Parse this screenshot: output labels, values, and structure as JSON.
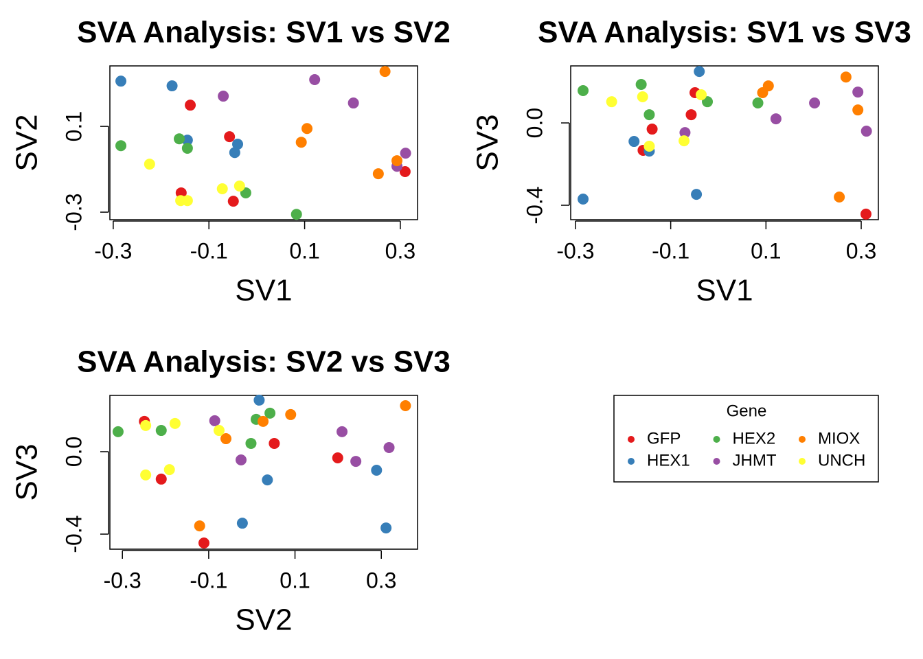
{
  "chart_data": [
    {
      "type": "scatter",
      "title": "SVA Analysis: SV1 vs SV2",
      "x_label": "SV1",
      "y_label": "SV2",
      "xlim": [
        -0.307,
        0.336
      ],
      "ylim": [
        -0.335,
        0.382
      ],
      "xticks": [
        -0.3,
        -0.1,
        0.1,
        0.3
      ],
      "yticks": [
        -0.3,
        0.1
      ],
      "legend_title": "Gene",
      "series": [
        {
          "name": "GFP",
          "color": "#E41A1C",
          "x": [
            -0.139,
            -0.057,
            -0.158,
            -0.049,
            0.31
          ],
          "values": [
            0.199,
            0.052,
            -0.21,
            -0.249,
            -0.111
          ]
        },
        {
          "name": "HEX1",
          "color": "#377EB8",
          "x": [
            -0.284,
            -0.177,
            -0.145,
            -0.04,
            -0.046
          ],
          "values": [
            0.311,
            0.289,
            0.036,
            0.017,
            -0.022
          ]
        },
        {
          "name": "HEX2",
          "color": "#4DAF4A",
          "x": [
            -0.284,
            -0.162,
            -0.145,
            -0.023,
            0.083
          ],
          "values": [
            0.01,
            0.042,
            -0.002,
            -0.21,
            -0.31
          ]
        },
        {
          "name": "JHMT",
          "color": "#984EA3",
          "x": [
            0.121,
            -0.07,
            0.202,
            0.311,
            0.293
          ],
          "values": [
            0.318,
            0.241,
            0.209,
            -0.025,
            -0.086
          ]
        },
        {
          "name": "MIOX",
          "color": "#FF7F00",
          "x": [
            0.268,
            0.105,
            0.093,
            0.293,
            0.254
          ],
          "values": [
            0.356,
            0.09,
            0.026,
            -0.06,
            -0.121
          ]
        },
        {
          "name": "UNCH",
          "color": "#FFFF33",
          "x": [
            -0.224,
            -0.072,
            -0.036,
            -0.159,
            -0.145
          ],
          "values": [
            -0.076,
            -0.191,
            -0.178,
            -0.246,
            -0.246
          ]
        }
      ]
    },
    {
      "type": "scatter",
      "title": "SVA Analysis: SV1 vs SV3",
      "x_label": "SV1",
      "y_label": "SV3",
      "xlim": [
        -0.31,
        0.336
      ],
      "ylim": [
        -0.47,
        0.277
      ],
      "xticks": [
        -0.3,
        -0.1,
        0.1,
        0.3
      ],
      "yticks": [
        -0.4,
        {
          "value": 0,
          "label": "0.0"
        }
      ],
      "series": [
        {
          "name": "GFP",
          "color": "#E41A1C",
          "x": [
            -0.139,
            -0.057,
            -0.158,
            -0.049,
            0.31
          ],
          "values": [
            -0.03,
            0.04,
            -0.133,
            0.147,
            -0.443
          ]
        },
        {
          "name": "HEX1",
          "color": "#377EB8",
          "x": [
            -0.284,
            -0.177,
            -0.145,
            -0.04,
            -0.046
          ],
          "values": [
            -0.37,
            -0.09,
            -0.137,
            0.25,
            -0.347
          ]
        },
        {
          "name": "HEX2",
          "color": "#4DAF4A",
          "x": [
            -0.284,
            -0.162,
            -0.145,
            -0.023,
            0.083
          ],
          "values": [
            0.157,
            0.187,
            0.04,
            0.103,
            0.097
          ]
        },
        {
          "name": "JHMT",
          "color": "#984EA3",
          "x": [
            0.121,
            -0.07,
            0.202,
            0.311,
            0.293
          ],
          "values": [
            0.02,
            -0.047,
            0.097,
            -0.04,
            0.15
          ]
        },
        {
          "name": "MIOX",
          "color": "#FF7F00",
          "x": [
            0.268,
            0.105,
            0.093,
            0.293,
            0.254
          ],
          "values": [
            0.223,
            0.18,
            0.147,
            0.063,
            -0.36
          ]
        },
        {
          "name": "UNCH",
          "color": "#FFFF33",
          "x": [
            -0.224,
            -0.072,
            -0.036,
            -0.159,
            -0.145
          ],
          "values": [
            0.103,
            -0.087,
            0.137,
            0.127,
            -0.113
          ]
        }
      ]
    },
    {
      "type": "scatter",
      "title": "SVA Analysis: SV2 vs SV3",
      "x_label": "SV2",
      "y_label": "SV3",
      "xlim": [
        -0.329,
        0.384
      ],
      "ylim": [
        -0.473,
        0.273
      ],
      "xticks": [
        -0.3,
        -0.1,
        0.1,
        0.3
      ],
      "yticks": [
        -0.4,
        {
          "value": 0,
          "label": "0.0"
        }
      ],
      "series": [
        {
          "name": "GFP",
          "color": "#E41A1C",
          "x": [
            0.199,
            0.052,
            -0.21,
            -0.249,
            -0.111
          ],
          "values": [
            -0.03,
            0.04,
            -0.133,
            0.147,
            -0.443
          ]
        },
        {
          "name": "HEX1",
          "color": "#377EB8",
          "x": [
            0.311,
            0.289,
            0.036,
            0.017,
            -0.022
          ],
          "values": [
            -0.37,
            -0.09,
            -0.137,
            0.25,
            -0.347
          ]
        },
        {
          "name": "HEX2",
          "color": "#4DAF4A",
          "x": [
            0.01,
            0.042,
            -0.002,
            -0.21,
            -0.31
          ],
          "values": [
            0.157,
            0.187,
            0.04,
            0.103,
            0.097
          ]
        },
        {
          "name": "JHMT",
          "color": "#984EA3",
          "x": [
            0.318,
            0.241,
            0.209,
            -0.025,
            -0.086
          ],
          "values": [
            0.02,
            -0.047,
            0.097,
            -0.04,
            0.15
          ]
        },
        {
          "name": "MIOX",
          "color": "#FF7F00",
          "x": [
            0.356,
            0.09,
            0.026,
            -0.06,
            -0.121
          ],
          "values": [
            0.223,
            0.18,
            0.147,
            0.063,
            -0.36
          ]
        },
        {
          "name": "UNCH",
          "color": "#FFFF33",
          "x": [
            -0.076,
            -0.191,
            -0.178,
            -0.246,
            -0.246
          ],
          "values": [
            0.103,
            -0.087,
            0.137,
            0.127,
            -0.113
          ]
        }
      ]
    }
  ]
}
